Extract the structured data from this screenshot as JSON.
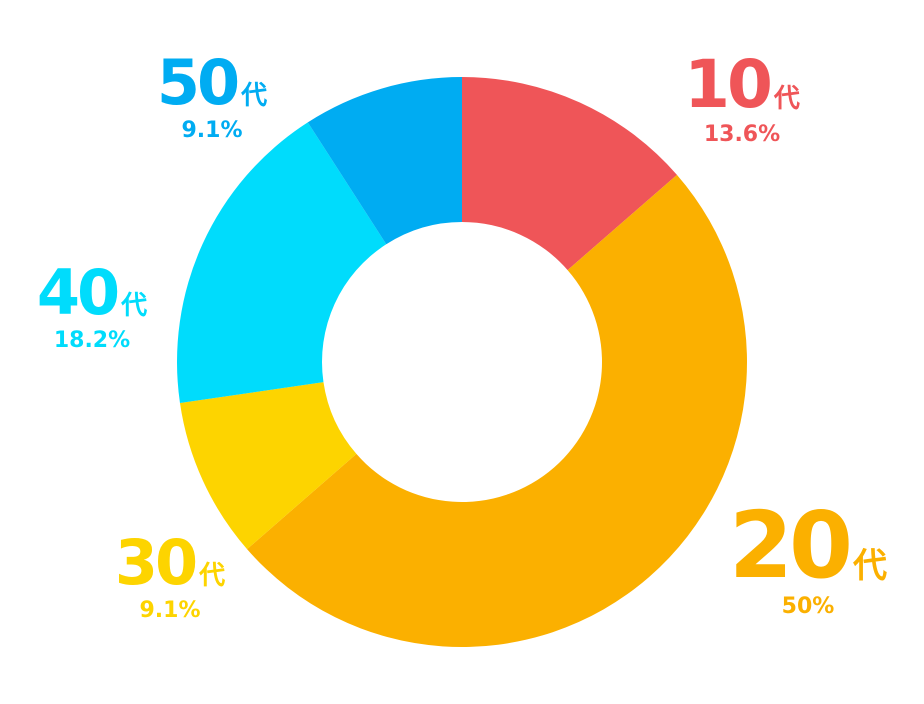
{
  "chart_data": {
    "type": "pie",
    "donut": true,
    "suffix": "代",
    "slices": [
      {
        "label": "10",
        "percent_label": "13.6%",
        "value": 13.6,
        "color": "#ef5558"
      },
      {
        "label": "20",
        "percent_label": "50%",
        "value": 50.0,
        "color": "#fbb000"
      },
      {
        "label": "30",
        "percent_label": "9.1%",
        "value": 9.1,
        "color": "#fdd400"
      },
      {
        "label": "40",
        "percent_label": "18.2%",
        "value": 18.2,
        "color": "#00dcfc"
      },
      {
        "label": "50",
        "percent_label": "9.1%",
        "value": 9.1,
        "color": "#00acf2"
      }
    ]
  }
}
